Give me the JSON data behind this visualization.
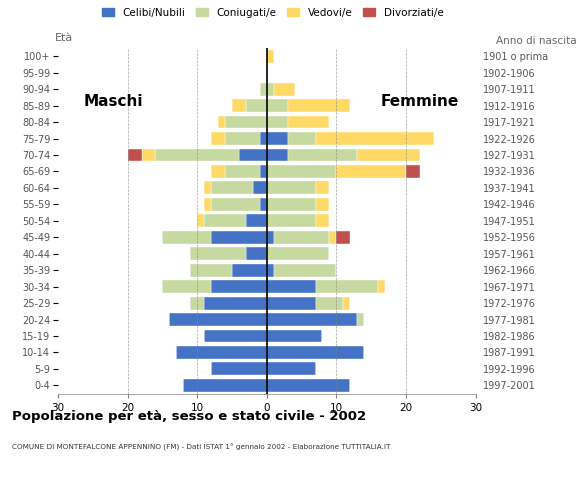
{
  "age_groups": [
    "0-4",
    "5-9",
    "10-14",
    "15-19",
    "20-24",
    "25-29",
    "30-34",
    "35-39",
    "40-44",
    "45-49",
    "50-54",
    "55-59",
    "60-64",
    "65-69",
    "70-74",
    "75-79",
    "80-84",
    "85-89",
    "90-94",
    "95-99",
    "100+"
  ],
  "birth_years": [
    "1997-2001",
    "1992-1996",
    "1987-1991",
    "1982-1986",
    "1977-1981",
    "1972-1976",
    "1967-1971",
    "1962-1966",
    "1957-1961",
    "1952-1956",
    "1947-1951",
    "1942-1946",
    "1937-1941",
    "1932-1936",
    "1927-1931",
    "1922-1926",
    "1917-1921",
    "1912-1916",
    "1907-1911",
    "1902-1906",
    "1901 o prima"
  ],
  "male": {
    "celibi": [
      12,
      8,
      13,
      9,
      14,
      9,
      8,
      5,
      3,
      8,
      3,
      1,
      2,
      1,
      4,
      1,
      0,
      0,
      0,
      0,
      0
    ],
    "coniugati": [
      0,
      0,
      0,
      0,
      0,
      2,
      7,
      6,
      8,
      7,
      6,
      7,
      6,
      5,
      12,
      5,
      6,
      3,
      1,
      0,
      0
    ],
    "vedovi": [
      0,
      0,
      0,
      0,
      0,
      0,
      0,
      0,
      0,
      0,
      1,
      1,
      1,
      2,
      2,
      2,
      1,
      2,
      0,
      0,
      0
    ],
    "divorziati": [
      0,
      0,
      0,
      0,
      0,
      0,
      0,
      0,
      0,
      0,
      0,
      0,
      0,
      0,
      2,
      0,
      0,
      0,
      0,
      0,
      0
    ]
  },
  "female": {
    "celibi": [
      12,
      7,
      14,
      8,
      13,
      7,
      7,
      1,
      0,
      1,
      0,
      0,
      0,
      0,
      3,
      3,
      0,
      0,
      0,
      0,
      0
    ],
    "coniugati": [
      0,
      0,
      0,
      0,
      1,
      4,
      9,
      9,
      9,
      8,
      7,
      7,
      7,
      10,
      10,
      4,
      3,
      3,
      1,
      0,
      0
    ],
    "vedovi": [
      0,
      0,
      0,
      0,
      0,
      1,
      1,
      0,
      0,
      1,
      2,
      2,
      2,
      10,
      9,
      17,
      6,
      9,
      3,
      0,
      1
    ],
    "divorziati": [
      0,
      0,
      0,
      0,
      0,
      0,
      0,
      0,
      0,
      2,
      0,
      0,
      0,
      2,
      0,
      0,
      0,
      0,
      0,
      0,
      0
    ]
  },
  "colors": {
    "celibi": "#4472c4",
    "coniugati": "#c6d9a0",
    "vedovi": "#ffd966",
    "divorziati": "#c0504d"
  },
  "title": "Popolazione per età, sesso e stato civile - 2002",
  "subtitle": "COMUNE DI MONTEFALCONE APPENNINO (FM) - Dati ISTAT 1° gennaio 2002 - Elaborazione TUTTITALIA.IT",
  "xlabel_left": "Maschi",
  "xlabel_right": "Femmine",
  "ylabel_left": "Età",
  "ylabel_right": "Anno di nascita",
  "xlim": 30,
  "background_color": "#ffffff",
  "legend_labels": [
    "Celibi/Nubili",
    "Coniugati/e",
    "Vedovi/e",
    "Divorziati/e"
  ]
}
